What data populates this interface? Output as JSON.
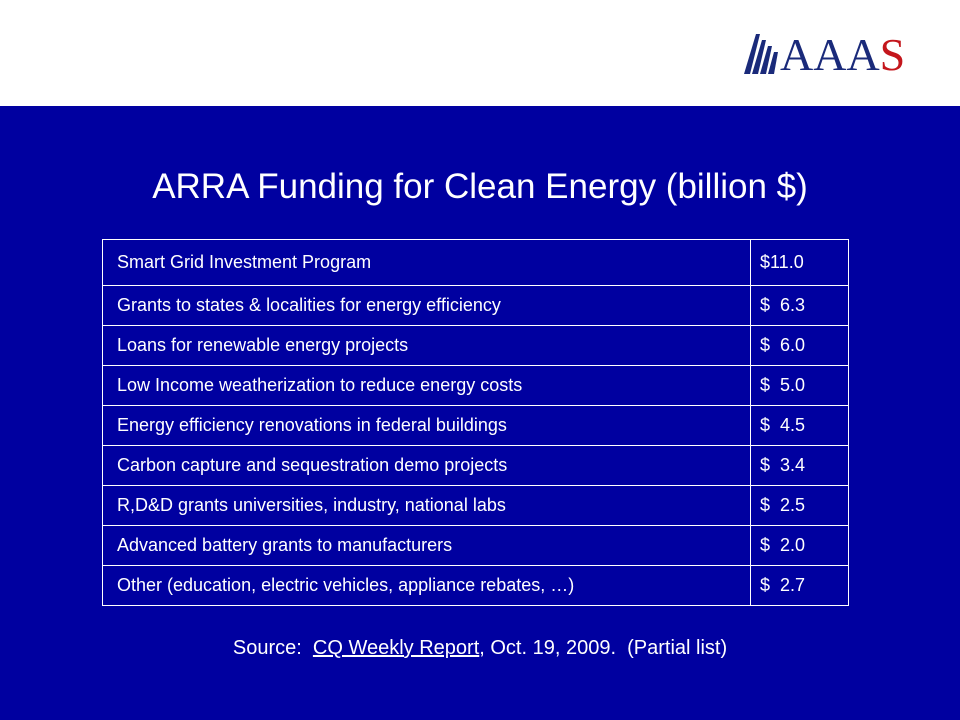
{
  "logo": {
    "text_main": "AAA",
    "text_accent": "S",
    "colors": {
      "main": "#1a2a7a",
      "accent": "#c4161c"
    }
  },
  "slide": {
    "background": "#0000a0",
    "title": "ARRA Funding for Clean Energy (billion $)",
    "rows": [
      {
        "program": "Smart Grid Investment Program",
        "amount": "$11.0"
      },
      {
        "program": "Grants to states & localities for energy efficiency",
        "amount": "$  6.3"
      },
      {
        "program": "Loans for renewable energy projects",
        "amount": "$  6.0"
      },
      {
        "program": "Low Income weatherization to reduce energy costs",
        "amount": "$  5.0"
      },
      {
        "program": "Energy efficiency renovations in federal buildings",
        "amount": "$  4.5"
      },
      {
        "program": "Carbon capture and sequestration demo projects",
        "amount": "$  3.4"
      },
      {
        "program": "R,D&D grants universities, industry, national labs",
        "amount": "$  2.5"
      },
      {
        "program": "Advanced battery grants to manufacturers",
        "amount": "$  2.0"
      },
      {
        "program": "Other (education, electric vehicles, appliance rebates, …)",
        "amount": "$  2.7"
      }
    ],
    "source": {
      "prefix": "Source:  ",
      "link_text": "CQ Weekly Report",
      "suffix": ", Oct. 19, 2009.  (Partial list)"
    }
  }
}
